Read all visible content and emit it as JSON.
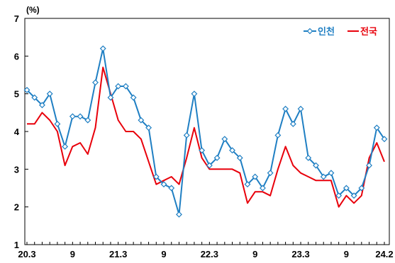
{
  "chart_data": {
    "type": "line",
    "unit": "(%)",
    "ylim": [
      1,
      7
    ],
    "y_ticks": [
      "1",
      "2",
      "3",
      "4",
      "5",
      "6",
      "7"
    ],
    "x_tick_labels": [
      {
        "index": 0,
        "label": "20.3"
      },
      {
        "index": 6,
        "label": "9"
      },
      {
        "index": 12,
        "label": "21.3"
      },
      {
        "index": 18,
        "label": "9"
      },
      {
        "index": 24,
        "label": "22.3"
      },
      {
        "index": 30,
        "label": "9"
      },
      {
        "index": 36,
        "label": "23.3"
      },
      {
        "index": 42,
        "label": "9"
      },
      {
        "index": 47,
        "label": "24.2"
      }
    ],
    "grid": false,
    "legend_position": "top-right",
    "series": [
      {
        "name": "인천",
        "color": "#1f7fc3",
        "marker": "diamond",
        "values": [
          5.1,
          4.9,
          4.7,
          5.0,
          4.2,
          3.6,
          4.4,
          4.4,
          4.3,
          5.3,
          6.2,
          4.9,
          5.2,
          5.2,
          4.9,
          4.3,
          4.1,
          2.8,
          2.6,
          2.5,
          1.8,
          3.9,
          5.0,
          3.5,
          3.1,
          3.3,
          3.8,
          3.5,
          3.3,
          2.6,
          2.8,
          2.5,
          2.9,
          3.9,
          4.6,
          4.2,
          4.6,
          3.3,
          3.1,
          2.8,
          2.9,
          2.3,
          2.5,
          2.3,
          2.5,
          3.1,
          4.1,
          3.8
        ]
      },
      {
        "name": "전국",
        "color": "#e8000b",
        "marker": "none",
        "values": [
          4.2,
          4.2,
          4.5,
          4.3,
          4.0,
          3.1,
          3.6,
          3.7,
          3.4,
          4.1,
          5.7,
          5.0,
          4.3,
          4.0,
          4.0,
          3.8,
          3.2,
          2.6,
          2.7,
          2.8,
          2.6,
          3.3,
          4.1,
          3.3,
          3.0,
          3.0,
          3.0,
          3.0,
          2.9,
          2.1,
          2.4,
          2.4,
          2.3,
          3.0,
          3.6,
          3.1,
          2.9,
          2.8,
          2.7,
          2.7,
          2.7,
          2.0,
          2.3,
          2.1,
          2.3,
          3.3,
          3.7,
          3.2
        ]
      }
    ]
  }
}
